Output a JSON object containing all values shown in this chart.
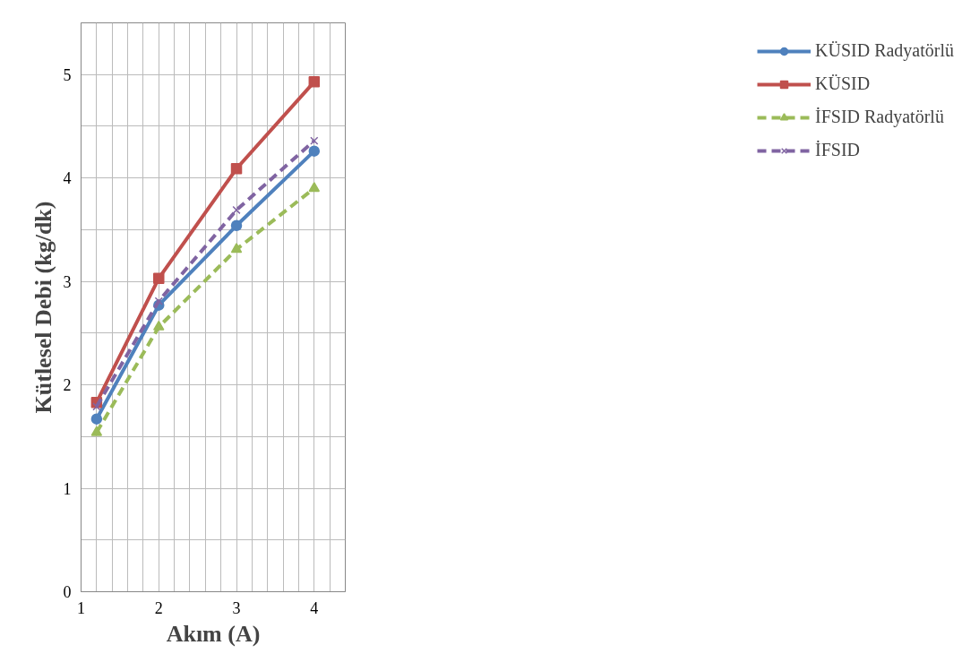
{
  "chart_data": {
    "type": "line",
    "xlabel": "Akım (A)",
    "ylabel": "Kütlesel Debi (kg/dk)",
    "x": [
      1.2,
      2,
      3,
      4
    ],
    "series": [
      {
        "name": "KÜSID Radyatörlü",
        "color": "#4f81bd",
        "marker": "circle",
        "line_style": "solid",
        "values": [
          1.67,
          2.77,
          3.54,
          4.26
        ]
      },
      {
        "name": "KÜSID",
        "color": "#c0504d",
        "marker": "square",
        "line_style": "solid",
        "values": [
          1.83,
          3.03,
          4.09,
          4.93
        ]
      },
      {
        "name": "İFSID Radyatörlü",
        "color": "#9bbb59",
        "marker": "triangle",
        "line_style": "dashed",
        "values": [
          1.54,
          2.56,
          3.31,
          3.9
        ]
      },
      {
        "name": "İFSID",
        "color": "#8064a2",
        "marker": "cross",
        "line_style": "dashed",
        "values": [
          1.79,
          2.81,
          3.69,
          4.36
        ]
      }
    ],
    "xlim": [
      1,
      4.4
    ],
    "ylim": [
      0,
      5.5
    ],
    "xticks": [
      1,
      {
        "value": 1.2,
        "label": null
      },
      {
        "value": 1.4,
        "label": null
      },
      {
        "value": 1.6,
        "label": null
      },
      {
        "value": 1.8,
        "label": null
      },
      2,
      {
        "value": 2.2,
        "label": null
      },
      {
        "value": 2.4,
        "label": null
      },
      {
        "value": 2.6,
        "label": null
      },
      {
        "value": 2.8,
        "label": null
      },
      3,
      {
        "value": 3.2,
        "label": null
      },
      {
        "value": 3.4,
        "label": null
      },
      {
        "value": 3.6,
        "label": null
      },
      {
        "value": 3.8,
        "label": null
      },
      4,
      {
        "value": 4.2,
        "label": null
      },
      {
        "value": 4.4,
        "label": null
      }
    ],
    "yticks": [
      0,
      {
        "value": 0.5,
        "label": null
      },
      1,
      {
        "value": 1.5,
        "label": null
      },
      2,
      {
        "value": 2.5,
        "label": null
      },
      3,
      {
        "value": 3.5,
        "label": null
      },
      4,
      {
        "value": 4.5,
        "label": null
      },
      5,
      {
        "value": 5.5,
        "label": null
      }
    ],
    "grid": true,
    "legend": "right"
  }
}
